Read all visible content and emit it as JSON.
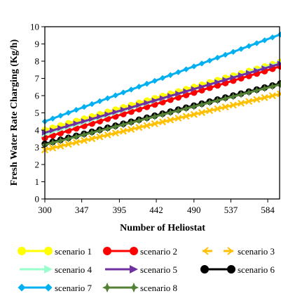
{
  "chart_data": {
    "type": "line",
    "title": "",
    "xlabel": "Number of Heliostat",
    "ylabel": "Fresh Water Rate Charging (Kg/h)",
    "xlim": [
      300,
      600
    ],
    "ylim": [
      0,
      10
    ],
    "xticks": [
      "300",
      "347",
      "395",
      "442",
      "490",
      "537",
      "584"
    ],
    "yticks": [
      "0",
      "1",
      "2",
      "3",
      "4",
      "5",
      "6",
      "7",
      "8",
      "9",
      "10"
    ],
    "grid": false,
    "legend_position": "bottom",
    "series": [
      {
        "name": "scenario 1",
        "color": "#FFFF00",
        "marker": "circle",
        "x": [
          300,
          600
        ],
        "y": [
          4.0,
          7.95
        ]
      },
      {
        "name": "scenario 2",
        "color": "#FF0000",
        "marker": "circle",
        "x": [
          300,
          600
        ],
        "y": [
          3.55,
          7.7
        ]
      },
      {
        "name": "scenario 3",
        "color": "#FFC000",
        "marker": "cross",
        "x": [
          300,
          600
        ],
        "y": [
          2.85,
          6.1
        ]
      },
      {
        "name": "scenario 4",
        "color": "#99FFCC",
        "marker": "arrow",
        "x": [
          300,
          600
        ],
        "y": [
          3.75,
          7.9
        ]
      },
      {
        "name": "scenario 5",
        "color": "#7030A0",
        "marker": "arrow",
        "x": [
          300,
          600
        ],
        "y": [
          3.85,
          7.85
        ]
      },
      {
        "name": "scenario 6",
        "color": "#000000",
        "marker": "circle",
        "x": [
          300,
          600
        ],
        "y": [
          3.2,
          6.7
        ]
      },
      {
        "name": "scenario 7",
        "color": "#00B0F0",
        "marker": "diamond",
        "x": [
          300,
          600
        ],
        "y": [
          4.5,
          9.55
        ]
      },
      {
        "name": "scenario 8",
        "color": "#548235",
        "marker": "star",
        "x": [
          300,
          600
        ],
        "y": [
          3.15,
          6.65
        ]
      }
    ]
  }
}
